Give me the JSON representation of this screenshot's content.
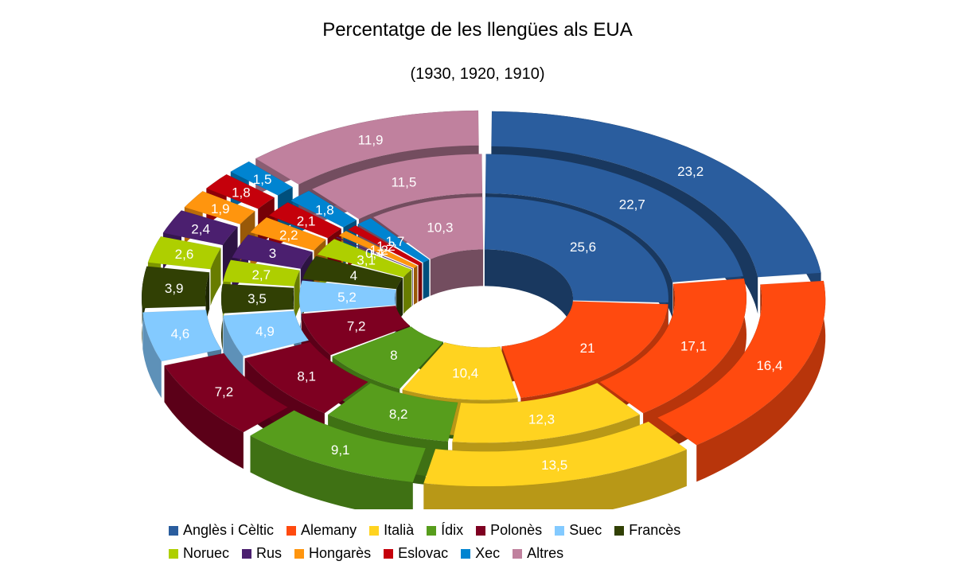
{
  "chart_data": {
    "type": "donut-3d",
    "title": "Percentatge de les llengües als EUA",
    "subtitle": "(1930, 1920, 1910)",
    "categories": [
      "Anglès i Cèltic",
      "Alemany",
      "Italià",
      "Ídix",
      "Polonès",
      "Suec",
      "Francès",
      "Noruec",
      "Rus",
      "Hongarès",
      "Eslovac",
      "Xec",
      "Altres"
    ],
    "colors": [
      "#2a5d9e",
      "#ff4a0f",
      "#ffd320",
      "#579d1c",
      "#7e0021",
      "#83caff",
      "#314004",
      "#aecf00",
      "#4b1f6f",
      "#ff950e",
      "#c5000b",
      "#0084d1",
      "#c0819e"
    ],
    "series": [
      {
        "name": "1930",
        "values": [
          25.6,
          21,
          10.4,
          8,
          7.2,
          5.2,
          4,
          3.1,
          0.4,
          1.2,
          1.2,
          1.7,
          10.3
        ]
      },
      {
        "name": "1920",
        "values": [
          22.7,
          17.1,
          12.3,
          8.2,
          8.1,
          4.9,
          3.5,
          2.7,
          3,
          2.2,
          2.1,
          1.8,
          11.5
        ]
      },
      {
        "name": "1910",
        "values": [
          23.2,
          16.4,
          13.5,
          9.1,
          7.2,
          4.6,
          3.9,
          2.6,
          2.4,
          1.9,
          1.8,
          1.5,
          11.9
        ]
      }
    ],
    "value_labels": [
      [
        "25,6",
        "21",
        "10,4",
        "8",
        "7,2",
        "5,2",
        "4",
        "3,1",
        "0,4",
        "1,2",
        "1,2",
        "1,7",
        "10,3"
      ],
      [
        "22,7",
        "17,1",
        "12,3",
        "8,2",
        "8,1",
        "4,9",
        "3,5",
        "2,7",
        "3",
        "2,2",
        "2,1",
        "1,8",
        "11,5"
      ],
      [
        "23,2",
        "16,4",
        "13,5",
        "9,1",
        "7,2",
        "4,6",
        "3,9",
        "2,6",
        "2,4",
        "1,9",
        "1,8",
        "1,5",
        "11,9"
      ]
    ],
    "legend_position": "bottom"
  }
}
